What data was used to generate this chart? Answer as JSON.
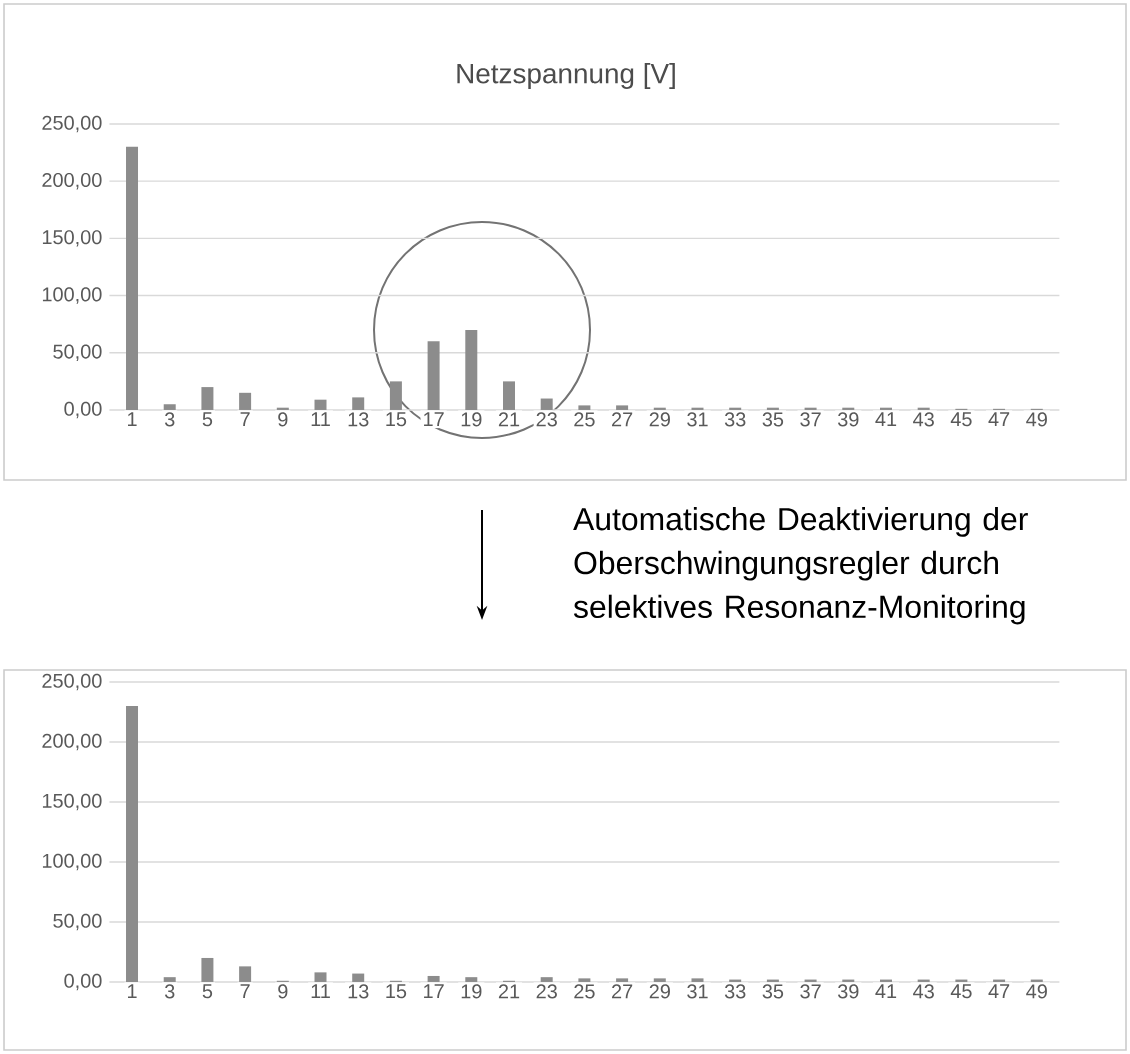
{
  "chart_data": [
    {
      "type": "bar",
      "title": "Netzspannung [V]",
      "categories": [
        "1",
        "3",
        "5",
        "7",
        "9",
        "11",
        "13",
        "15",
        "17",
        "19",
        "21",
        "23",
        "25",
        "27",
        "29",
        "31",
        "33",
        "35",
        "37",
        "39",
        "41",
        "43",
        "45",
        "47",
        "49"
      ],
      "values": [
        230,
        5,
        20,
        15,
        2,
        9,
        11,
        25,
        60,
        70,
        25,
        10,
        4,
        4,
        2,
        2,
        2,
        2,
        2,
        2,
        2,
        2,
        1,
        1,
        1
      ],
      "color": "#8c8c8c",
      "ylim": [
        0,
        250
      ],
      "yticks": [
        {
          "value": 0,
          "label": "0,00"
        },
        {
          "value": 50,
          "label": "50,00"
        },
        {
          "value": 100,
          "label": "100,00"
        },
        {
          "value": 150,
          "label": "150,00"
        },
        {
          "value": 200,
          "label": "200,00"
        },
        {
          "value": 250,
          "label": "250,00"
        }
      ],
      "grid": "y"
    },
    {
      "type": "bar",
      "categories": [
        "1",
        "3",
        "5",
        "7",
        "9",
        "11",
        "13",
        "15",
        "17",
        "19",
        "21",
        "23",
        "25",
        "27",
        "29",
        "31",
        "33",
        "35",
        "37",
        "39",
        "41",
        "43",
        "45",
        "47",
        "49"
      ],
      "values": [
        230,
        4,
        20,
        13,
        1,
        8,
        7,
        1,
        5,
        4,
        1,
        4,
        3,
        3,
        3,
        3,
        2,
        2,
        2,
        2,
        2,
        2,
        2,
        2,
        2
      ],
      "color": "#8c8c8c",
      "ylim": [
        0,
        250
      ],
      "yticks": [
        {
          "value": 0,
          "label": "0,00"
        },
        {
          "value": 50,
          "label": "50,00"
        },
        {
          "value": 100,
          "label": "100,00"
        },
        {
          "value": 150,
          "label": "150,00"
        },
        {
          "value": 200,
          "label": "200,00"
        },
        {
          "value": 250,
          "label": "250,00"
        }
      ],
      "grid": "y",
      "annotations": [
        "Automatische Deaktivierung der Oberschwingungsregler durch selektives Resonanz-Monitoring"
      ]
    }
  ]
}
